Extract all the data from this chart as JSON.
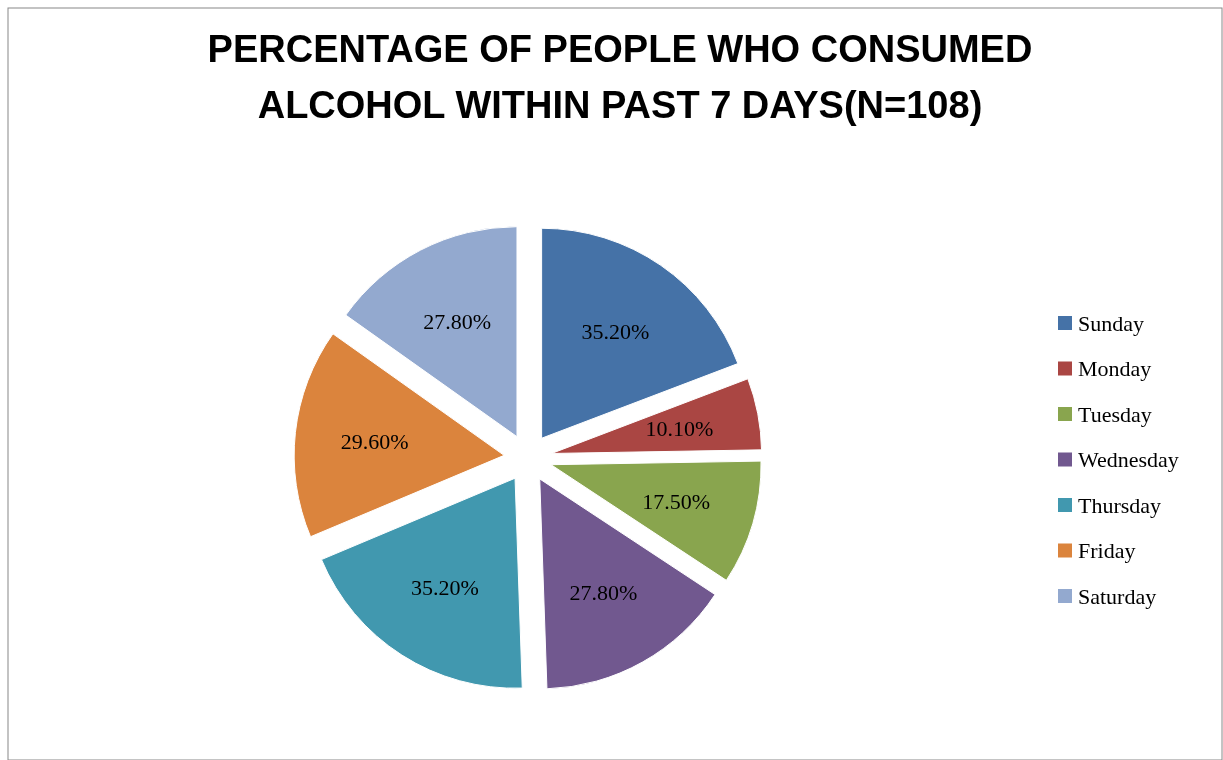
{
  "chart_data": {
    "type": "pie",
    "title": "PERCENTAGE OF PEOPLE WHO CONSUMED ALCOHOL WITHIN PAST 7 DAYS(N=108)",
    "categories": [
      "Sunday",
      "Monday",
      "Tuesday",
      "Wednesday",
      "Thursday",
      "Friday",
      "Saturday"
    ],
    "values": [
      35.2,
      10.1,
      17.5,
      27.8,
      35.2,
      29.6,
      27.8
    ],
    "value_labels": [
      "35.20%",
      "10.10%",
      "17.50%",
      "27.80%",
      "35.20%",
      "29.60%",
      "27.80%"
    ],
    "colors": [
      "#4572a7",
      "#aa4643",
      "#89a54e",
      "#71588f",
      "#4198af",
      "#db843d",
      "#93a9cf"
    ],
    "legend": "right"
  }
}
